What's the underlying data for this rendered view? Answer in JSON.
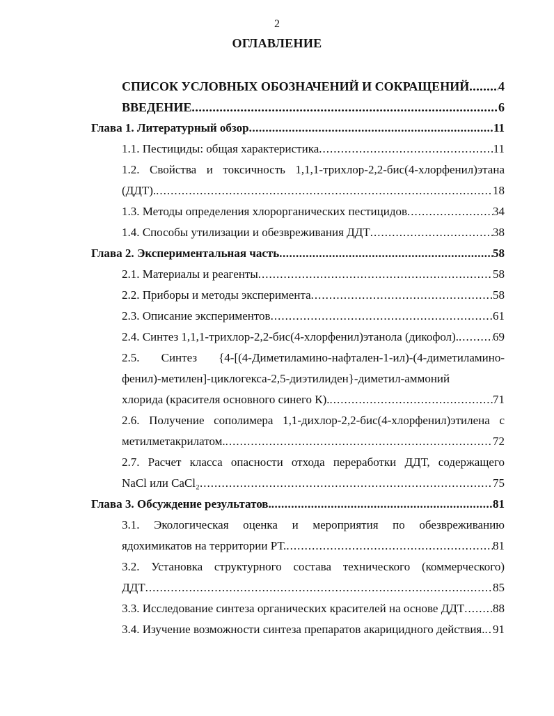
{
  "page_number": "2",
  "title": "ОГЛАВЛЕНИЕ",
  "entries": [
    {
      "level": "front",
      "lines": [],
      "last": "СПИСОК УСЛОВНЫХ ОБОЗНАЧЕНИЙ И СОКРАЩЕНИЙ",
      "page": "4"
    },
    {
      "level": "front",
      "lines": [],
      "last": "ВВЕДЕНИЕ",
      "page": "6"
    },
    {
      "level": "chapter",
      "lines": [],
      "last": "Глава 1. Литературный обзор",
      "page": "11"
    },
    {
      "level": "sub",
      "lines": [],
      "last": "1.1. Пестициды: общая характеристика",
      "page": "11"
    },
    {
      "level": "sub",
      "lines": [
        "1.2. Свойства и токсичность 1,1,1-трихлор-2,2-бис(4-хлорфенил)этана"
      ],
      "last": "(ДДТ).",
      "page": "18"
    },
    {
      "level": "sub",
      "lines": [],
      "last": "1.3. Методы определения хлорорганических пестицидов",
      "page": "34"
    },
    {
      "level": "sub",
      "lines": [],
      "last": "1.4. Способы утилизации и обезвреживания ДДТ",
      "page": "38"
    },
    {
      "level": "chapter",
      "lines": [],
      "last": "Глава 2. Экспериментальная часть",
      "page": "58"
    },
    {
      "level": "sub",
      "lines": [],
      "last": "2.1. Материалы и реагенты",
      "page": "58"
    },
    {
      "level": "sub",
      "lines": [],
      "last": "2.2. Приборы и методы эксперимента",
      "page": "58"
    },
    {
      "level": "sub",
      "lines": [],
      "last": "2.3. Описание экспериментов",
      "page": "61"
    },
    {
      "level": "sub",
      "lines": [],
      "last": "2.4. Синтез 1,1,1-трихлор-2,2-бис(4-хлорфенил)этанола (дикофол).",
      "page": "69"
    },
    {
      "level": "sub",
      "lines": [
        "2.5. Синтез {4-[(4-Диметиламино-нафтален-1-ил)-(4-диметиламино-",
        "фенил)-метилен]-циклогекса-2,5-диэтилиден}-диметил-аммоний"
      ],
      "last": "хлорида (красителя основного синего К).",
      "page": "71"
    },
    {
      "level": "sub",
      "lines": [
        "2.6. Получение сополимера 1,1-дихлор-2,2-бис(4-хлорфенил)этилена с"
      ],
      "last": "метилметакрилатом.",
      "page": "72"
    },
    {
      "level": "sub",
      "lines": [
        "2.7. Расчет класса опасности отхода переработки ДДТ, содержащего"
      ],
      "last": "NaCl или CaCl₂",
      "page": "75"
    },
    {
      "level": "chapter",
      "lines": [],
      "last": "Глава 3. Обсуждение результатов.",
      "page": "81"
    },
    {
      "level": "sub",
      "lines": [
        "3.1. Экологическая оценка и мероприятия по обезвреживанию"
      ],
      "last": "ядохимикатов на территории РТ.",
      "page": "81"
    },
    {
      "level": "sub",
      "lines": [
        "3.2. Установка структурного состава технического (коммерческого)"
      ],
      "last": "ДДТ",
      "page": "85"
    },
    {
      "level": "sub",
      "lines": [],
      "last": "3.3. Исследование синтеза органических красителей на основе ДДТ",
      "page": "88"
    },
    {
      "level": "sub",
      "lines": [],
      "last": "3.4. Изучение возможности синтеза препаратов акарицидного действия.",
      "page": "91"
    }
  ]
}
